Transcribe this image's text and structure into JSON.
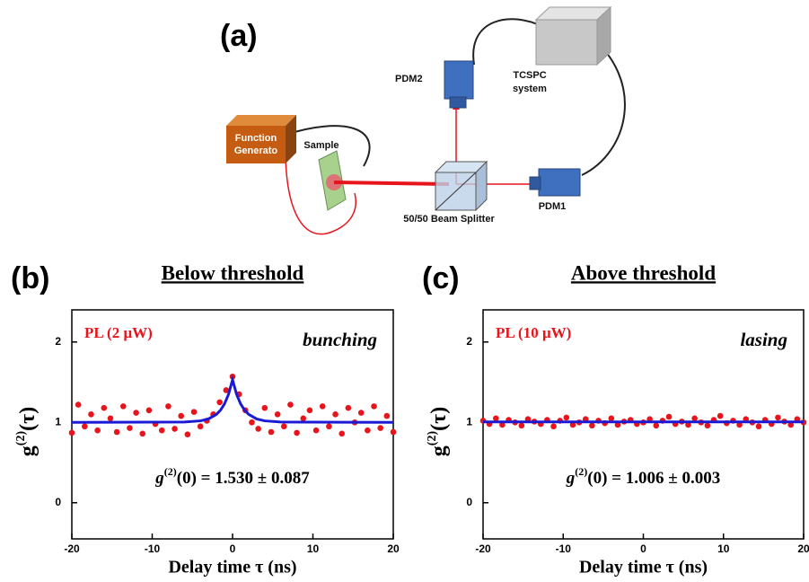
{
  "diagram": {
    "panel_label": "(a)",
    "function_generator": [
      "Function",
      "Generato"
    ],
    "sample": "Sample",
    "beam_splitter": "50/50 Beam Splitter",
    "pdm1": "PDM1",
    "pdm2": "PDM2",
    "tcspc": [
      "TCSPC",
      "system"
    ]
  },
  "chart_data": [
    {
      "type": "scatter",
      "panel_label": "(b)",
      "title": "Below threshold",
      "condition": "PL (2 μW)",
      "regime": "bunching",
      "annotation": [
        "g",
        "(2)",
        "(0) = 1.530 ± 0.087"
      ],
      "ylabel": [
        "g",
        "(2)",
        "(τ)"
      ],
      "xlabel": "Delay time τ (ns)",
      "xlim": [
        -20,
        20
      ],
      "ylim": [
        -0.45,
        2.4
      ],
      "xticks": [
        -20,
        -10,
        0,
        10,
        20
      ],
      "yticks": [
        0,
        1,
        2
      ],
      "series": [
        {
          "type": "scatter",
          "color": "#e8141c",
          "x": [
            -20,
            -19.2,
            -18.4,
            -17.6,
            -16.8,
            -16,
            -15.2,
            -14.4,
            -13.6,
            -12.8,
            -12,
            -11.2,
            -10.4,
            -9.6,
            -8.8,
            -8,
            -7.2,
            -6.4,
            -5.6,
            -4.8,
            -4,
            -3.2,
            -2.4,
            -1.6,
            -0.8,
            0,
            0.8,
            1.6,
            2.4,
            3.2,
            4,
            4.8,
            5.6,
            6.4,
            7.2,
            8,
            8.8,
            9.6,
            10.4,
            11.2,
            12,
            12.8,
            13.6,
            14.4,
            15.2,
            16,
            16.8,
            17.6,
            18.4,
            19.2,
            20
          ],
          "values": [
            0.87,
            1.22,
            0.95,
            1.1,
            0.9,
            1.18,
            1.05,
            0.88,
            1.2,
            0.93,
            1.12,
            0.86,
            1.15,
            0.98,
            0.9,
            1.2,
            0.92,
            1.08,
            0.85,
            1.13,
            0.95,
            1.02,
            1.1,
            1.25,
            1.4,
            1.57,
            1.35,
            1.15,
            1.0,
            0.92,
            1.18,
            0.88,
            1.1,
            0.95,
            1.22,
            0.87,
            1.05,
            1.15,
            0.9,
            1.2,
            0.95,
            1.1,
            0.86,
            1.18,
            1.0,
            1.12,
            0.9,
            1.2,
            0.93,
            1.08,
            0.88
          ]
        },
        {
          "type": "line",
          "color": "#1a1ad6",
          "x": [
            -20,
            -6,
            -4,
            -3,
            -2,
            -1.5,
            -1,
            -0.5,
            0,
            0.5,
            1,
            1.5,
            2,
            3,
            4,
            6,
            20
          ],
          "values": [
            1.0,
            1.004,
            1.019,
            1.043,
            1.1,
            1.152,
            1.23,
            1.349,
            1.53,
            1.349,
            1.23,
            1.152,
            1.1,
            1.043,
            1.019,
            1.004,
            1.0
          ]
        }
      ]
    },
    {
      "type": "scatter",
      "panel_label": "(c)",
      "title": "Above threshold",
      "condition": "PL (10 μW)",
      "regime": "lasing",
      "annotation": [
        "g",
        "(2)",
        "(0) = 1.006 ± 0.003"
      ],
      "ylabel": [
        "g",
        "(2)",
        "(τ)"
      ],
      "xlabel": "Delay time τ (ns)",
      "xlim": [
        -20,
        20
      ],
      "ylim": [
        -0.45,
        2.4
      ],
      "xticks": [
        -20,
        -10,
        0,
        10,
        20
      ],
      "yticks": [
        0,
        1,
        2
      ],
      "series": [
        {
          "type": "scatter",
          "color": "#e8141c",
          "x": [
            -20,
            -19.2,
            -18.4,
            -17.6,
            -16.8,
            -16,
            -15.2,
            -14.4,
            -13.6,
            -12.8,
            -12,
            -11.2,
            -10.4,
            -9.6,
            -8.8,
            -8,
            -7.2,
            -6.4,
            -5.6,
            -4.8,
            -4,
            -3.2,
            -2.4,
            -1.6,
            -0.8,
            0,
            0.8,
            1.6,
            2.4,
            3.2,
            4,
            4.8,
            5.6,
            6.4,
            7.2,
            8,
            8.8,
            9.6,
            10.4,
            11.2,
            12,
            12.8,
            13.6,
            14.4,
            15.2,
            16,
            16.8,
            17.6,
            18.4,
            19.2,
            20
          ],
          "values": [
            1.02,
            0.98,
            1.05,
            0.97,
            1.03,
            1.0,
            0.96,
            1.04,
            1.01,
            0.98,
            1.03,
            0.95,
            1.02,
            1.06,
            0.97,
            1.0,
            1.04,
            0.96,
            1.02,
            0.99,
            1.05,
            0.97,
            1.01,
            1.03,
            0.98,
            1.0,
            1.04,
            0.96,
            1.02,
            1.07,
            0.98,
            1.01,
            0.97,
            1.05,
            1.0,
            0.96,
            1.03,
            1.08,
            0.99,
            1.02,
            0.97,
            1.04,
            1.0,
            0.95,
            1.03,
            0.98,
            1.06,
            1.01,
            0.97,
            1.04,
            1.0
          ]
        },
        {
          "type": "line",
          "color": "#1a1ad6",
          "x": [
            -20,
            20
          ],
          "values": [
            1.006,
            1.006
          ]
        }
      ]
    }
  ]
}
